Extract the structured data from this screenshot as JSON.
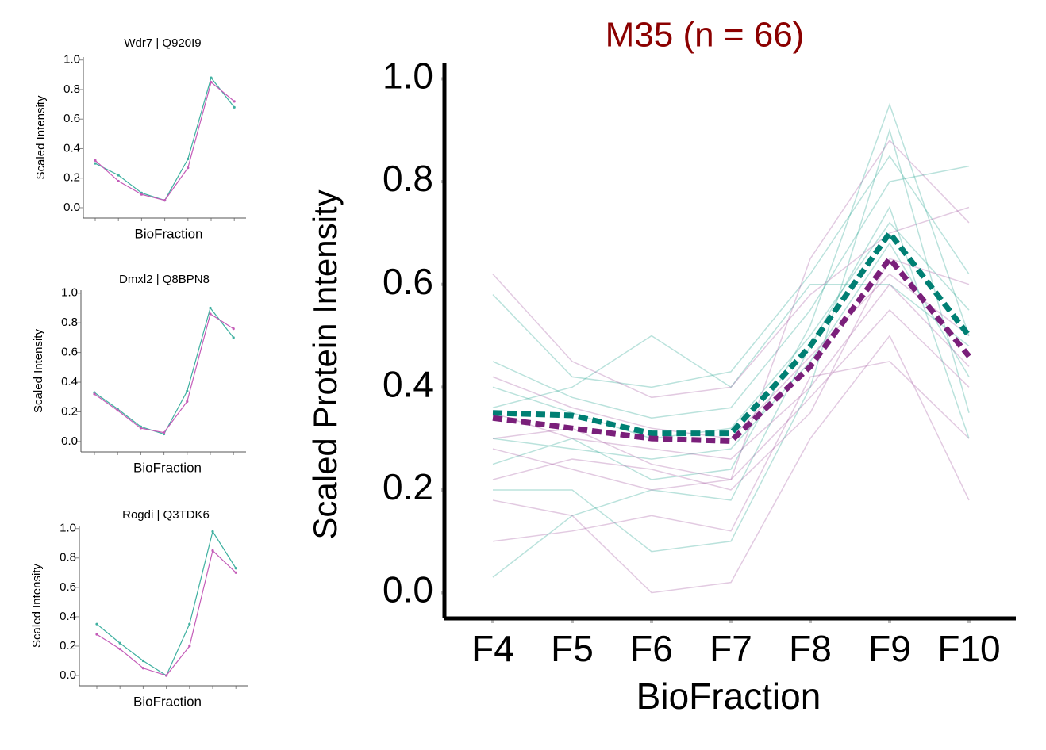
{
  "chart_data": [
    {
      "type": "line",
      "title": "M35 (n = 66)",
      "title_color": "#8b0000",
      "x_label": "BioFraction",
      "y_label": "Scaled Protein Intensity",
      "categories": [
        "F4",
        "F5",
        "F6",
        "F7",
        "F8",
        "F9",
        "F10"
      ],
      "ylim": [
        -0.05,
        1.03
      ],
      "yticks": [
        {
          "value": 0,
          "label": "0.0"
        },
        {
          "value": 0.2,
          "label": "0.2"
        },
        {
          "value": 0.4,
          "label": "0.4"
        },
        {
          "value": 0.6,
          "label": "0.6"
        },
        {
          "value": 0.8,
          "label": "0.8"
        },
        {
          "value": 1,
          "label": "1.0"
        }
      ],
      "series": [
        {
          "color": "#1a9e8a",
          "style": "thin",
          "values": [
            0.58,
            0.42,
            0.4,
            0.43,
            0.62,
            0.85,
            0.62
          ]
        },
        {
          "color": "#1a9e8a",
          "style": "thin",
          "values": [
            0.45,
            0.38,
            0.34,
            0.36,
            0.55,
            0.8,
            0.83
          ]
        },
        {
          "color": "#1a9e8a",
          "style": "thin",
          "values": [
            0.4,
            0.35,
            0.3,
            0.32,
            0.5,
            0.72,
            0.55
          ]
        },
        {
          "color": "#1a9e8a",
          "style": "thin",
          "values": [
            0.3,
            0.28,
            0.26,
            0.28,
            0.45,
            0.68,
            0.42
          ]
        },
        {
          "color": "#1a9e8a",
          "style": "thin",
          "values": [
            0.2,
            0.2,
            0.08,
            0.1,
            0.4,
            0.9,
            0.35
          ]
        },
        {
          "color": "#1a9e8a",
          "style": "thin",
          "values": [
            0.03,
            0.15,
            0.2,
            0.18,
            0.48,
            0.75,
            0.3
          ]
        },
        {
          "color": "#1a9e8a",
          "style": "thin",
          "values": [
            0.36,
            0.4,
            0.5,
            0.4,
            0.6,
            0.6,
            0.48
          ]
        },
        {
          "color": "#1a9e8a",
          "style": "thin",
          "values": [
            0.25,
            0.3,
            0.22,
            0.24,
            0.52,
            0.95,
            0.5
          ]
        },
        {
          "color": "#a0509a",
          "style": "thin",
          "values": [
            0.62,
            0.45,
            0.38,
            0.4,
            0.58,
            0.7,
            0.75
          ]
        },
        {
          "color": "#a0509a",
          "style": "thin",
          "values": [
            0.42,
            0.36,
            0.32,
            0.3,
            0.46,
            0.62,
            0.5
          ]
        },
        {
          "color": "#a0509a",
          "style": "thin",
          "values": [
            0.35,
            0.3,
            0.28,
            0.26,
            0.4,
            0.6,
            0.44
          ]
        },
        {
          "color": "#a0509a",
          "style": "thin",
          "values": [
            0.28,
            0.24,
            0.2,
            0.22,
            0.38,
            0.55,
            0.4
          ]
        },
        {
          "color": "#a0509a",
          "style": "thin",
          "values": [
            0.18,
            0.15,
            0.0,
            0.02,
            0.3,
            0.5,
            0.18
          ]
        },
        {
          "color": "#a0509a",
          "style": "thin",
          "values": [
            0.1,
            0.12,
            0.15,
            0.12,
            0.42,
            0.45,
            0.3
          ]
        },
        {
          "color": "#a0509a",
          "style": "thin",
          "values": [
            0.3,
            0.32,
            0.25,
            0.22,
            0.65,
            0.88,
            0.72
          ]
        },
        {
          "color": "#a0509a",
          "style": "thin",
          "values": [
            0.22,
            0.26,
            0.24,
            0.2,
            0.35,
            0.65,
            0.6
          ]
        },
        {
          "color": "#007f73",
          "style": "dashed",
          "values": [
            0.35,
            0.345,
            0.31,
            0.31,
            0.48,
            0.7,
            0.5
          ]
        },
        {
          "color": "#7a1f7a",
          "style": "dashed",
          "values": [
            0.34,
            0.32,
            0.3,
            0.295,
            0.44,
            0.65,
            0.46
          ]
        }
      ]
    },
    {
      "type": "line",
      "title": "Wdr7 | Q920I9",
      "x_label": "BioFraction",
      "y_label": "Scaled Intensity",
      "categories": [
        null,
        null,
        null,
        null,
        null,
        null,
        null
      ],
      "ylim": [
        -0.07,
        1.02
      ],
      "yticks": [
        {
          "value": 0,
          "label": "0.0"
        },
        {
          "value": 0.2,
          "label": "0.2"
        },
        {
          "value": 0.4,
          "label": "0.4"
        },
        {
          "value": 0.6,
          "label": "0.6"
        },
        {
          "value": 0.8,
          "label": "0.8"
        },
        {
          "value": 1,
          "label": "1.0"
        }
      ],
      "series": [
        {
          "color": "#3fb0a0",
          "values": [
            0.3,
            0.22,
            0.1,
            0.05,
            0.33,
            0.88,
            0.68
          ]
        },
        {
          "color": "#c45cb8",
          "values": [
            0.32,
            0.18,
            0.09,
            0.05,
            0.27,
            0.85,
            0.72
          ]
        }
      ]
    },
    {
      "type": "line",
      "title": "Dmxl2 | Q8BPN8",
      "x_label": "BioFraction",
      "y_label": "Scaled Intensity",
      "categories": [
        null,
        null,
        null,
        null,
        null,
        null,
        null
      ],
      "ylim": [
        -0.07,
        1.02
      ],
      "yticks": [
        {
          "value": 0,
          "label": "0.0"
        },
        {
          "value": 0.2,
          "label": "0.2"
        },
        {
          "value": 0.4,
          "label": "0.4"
        },
        {
          "value": 0.6,
          "label": "0.6"
        },
        {
          "value": 0.8,
          "label": "0.8"
        },
        {
          "value": 1,
          "label": "1.0"
        }
      ],
      "series": [
        {
          "color": "#3fb0a0",
          "values": [
            0.33,
            0.22,
            0.1,
            0.05,
            0.34,
            0.9,
            0.7
          ]
        },
        {
          "color": "#c45cb8",
          "values": [
            0.32,
            0.21,
            0.09,
            0.06,
            0.27,
            0.86,
            0.76
          ]
        }
      ]
    },
    {
      "type": "line",
      "title": "Rogdi | Q3TDK6",
      "x_label": "BioFraction",
      "y_label": "Scaled Intensity",
      "categories": [
        null,
        null,
        null,
        null,
        null,
        null,
        null
      ],
      "ylim": [
        -0.07,
        1.02
      ],
      "yticks": [
        {
          "value": 0,
          "label": "0.0"
        },
        {
          "value": 0.2,
          "label": "0.2"
        },
        {
          "value": 0.4,
          "label": "0.4"
        },
        {
          "value": 0.6,
          "label": "0.6"
        },
        {
          "value": 0.8,
          "label": "0.8"
        },
        {
          "value": 1,
          "label": "1.0"
        }
      ],
      "series": [
        {
          "color": "#3fb0a0",
          "values": [
            0.35,
            0.22,
            0.1,
            0.0,
            0.35,
            0.98,
            0.73
          ]
        },
        {
          "color": "#c45cb8",
          "values": [
            0.28,
            0.18,
            0.05,
            0.0,
            0.2,
            0.85,
            0.7
          ]
        }
      ]
    }
  ]
}
